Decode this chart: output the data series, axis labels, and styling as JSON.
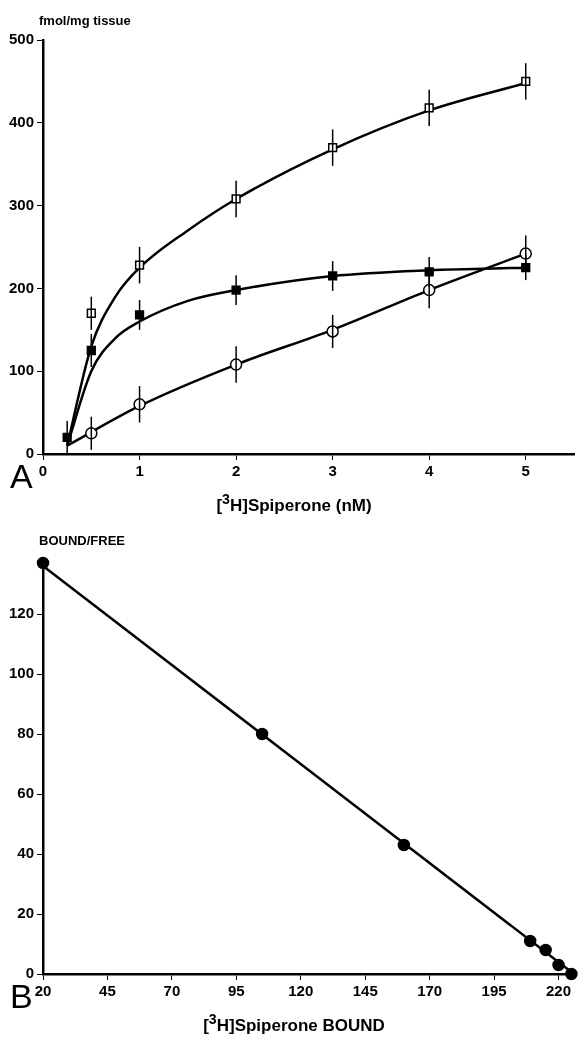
{
  "chart_data": [
    {
      "type": "scatter",
      "ylabel": "fmol/mg tissue",
      "xlabel": "[$^{3}$H]Spiperone (nM)",
      "annotations": [
        "A"
      ],
      "xlim": [
        0,
        5.5
      ],
      "xticks": [
        0,
        1,
        2,
        3,
        4,
        5
      ],
      "ylim": [
        0,
        500
      ],
      "yticks": [
        0,
        100,
        200,
        300,
        400,
        500
      ],
      "grid": false,
      "legend": false,
      "series": [
        {
          "type": "scatter",
          "marker": "square",
          "color": "#ffffff",
          "x": [
            0.5,
            1,
            2,
            3,
            4,
            5
          ],
          "values": [
            170,
            228,
            308,
            370,
            418,
            450
          ],
          "errors": [
            20,
            22,
            22,
            22,
            22,
            22
          ]
        },
        {
          "type": "scatter",
          "marker": "square",
          "color": "#000000",
          "x": [
            0.25,
            0.5,
            1,
            2,
            3,
            4,
            5
          ],
          "values": [
            20,
            125,
            168,
            198,
            215,
            220,
            225
          ],
          "errors": [
            20,
            20,
            18,
            18,
            18,
            18,
            15
          ]
        },
        {
          "type": "scatter",
          "marker": "circle",
          "color": "#ffffff",
          "x": [
            0.5,
            1,
            2,
            3,
            4,
            5
          ],
          "values": [
            25,
            60,
            108,
            148,
            198,
            242
          ],
          "errors": [
            20,
            22,
            22,
            20,
            22,
            22
          ]
        },
        {
          "type": "line",
          "marker": "none",
          "color": "#000000",
          "x": [
            0.25,
            0.5,
            0.75,
            1,
            1.5,
            2,
            3,
            4,
            5
          ],
          "values": [
            10,
            130,
            190,
            225,
            270,
            308,
            368,
            415,
            448
          ]
        },
        {
          "type": "line",
          "marker": "none",
          "color": "#000000",
          "x": [
            0.25,
            0.5,
            0.75,
            1,
            1.5,
            2,
            3,
            4,
            5
          ],
          "values": [
            10,
            100,
            140,
            160,
            185,
            198,
            215,
            222,
            225
          ]
        },
        {
          "type": "line",
          "marker": "none",
          "color": "#000000",
          "x": [
            0.25,
            1,
            2,
            3,
            4,
            5
          ],
          "values": [
            10,
            58,
            108,
            150,
            198,
            242
          ]
        }
      ]
    },
    {
      "type": "scatter",
      "ylabel": "BOUND/FREE",
      "xlabel": "[$^{3}$H]Spiperone BOUND",
      "annotations": [
        "B"
      ],
      "xlim": [
        20,
        226
      ],
      "xticks": [
        20,
        45,
        70,
        95,
        120,
        145,
        170,
        195,
        220
      ],
      "ylim": [
        0,
        138
      ],
      "yticks": [
        0,
        20,
        40,
        60,
        80,
        100,
        120
      ],
      "grid": false,
      "legend": false,
      "series": [
        {
          "type": "scatter",
          "marker": "circle",
          "color": "#000000",
          "x": [
            20,
            105,
            160,
            209,
            215,
            220,
            225
          ],
          "values": [
            137,
            80,
            43,
            11,
            8,
            3,
            0
          ]
        },
        {
          "type": "line",
          "marker": "none",
          "color": "#000000",
          "x": [
            20,
            226
          ],
          "values": [
            136,
            0
          ]
        }
      ]
    }
  ]
}
